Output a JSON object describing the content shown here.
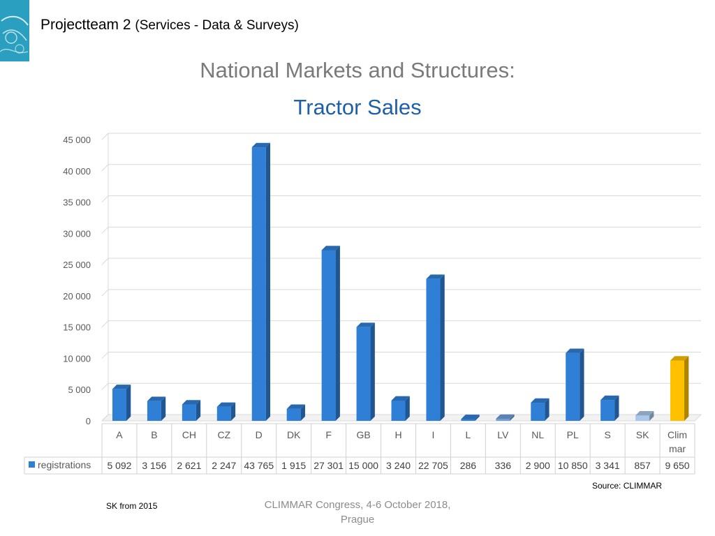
{
  "header": {
    "title": "Projectteam 2",
    "subtitle": "(Services - Data & Surveys)"
  },
  "slide": {
    "title": "National Markets and Structures:",
    "subtitle": "Tractor Sales"
  },
  "chart_data": {
    "type": "bar",
    "categories": [
      "A",
      "B",
      "CH",
      "CZ",
      "D",
      "DK",
      "F",
      "GB",
      "H",
      "I",
      "L",
      "LV",
      "NL",
      "PL",
      "S",
      "SK",
      "Clim\nmar"
    ],
    "series": [
      {
        "name": "registrations",
        "values": [
          5092,
          3156,
          2621,
          2247,
          43765,
          1915,
          27301,
          15000,
          3240,
          22705,
          286,
          336,
          2900,
          10850,
          3341,
          857,
          9650
        ],
        "value_labels": [
          "5 092",
          "3 156",
          "2 621",
          "2 247",
          "43 765",
          "1 915",
          "27 301",
          "15 000",
          "3 240",
          "22 705",
          "286",
          "336",
          "2 900",
          "10 850",
          "3 341",
          "857",
          "9 650"
        ]
      }
    ],
    "bar_colors": [
      "#2f7fd6",
      "#2f7fd6",
      "#2f7fd6",
      "#2f7fd6",
      "#2f7fd6",
      "#2f7fd6",
      "#2f7fd6",
      "#2f7fd6",
      "#2f7fd6",
      "#2f7fd6",
      "#2f7fd6",
      "#6f9fd8",
      "#2f7fd6",
      "#2f7fd6",
      "#2f7fd6",
      "#a9c8ea",
      "#ffc000"
    ],
    "legend_color": "#2f7fd6",
    "y_ticks": [
      "0",
      "5 000",
      "10 000",
      "15 000",
      "20 000",
      "25 000",
      "30 000",
      "35 000",
      "40 000",
      "45 000"
    ],
    "ylim": [
      0,
      45000
    ],
    "grid": true,
    "style": "3d-column-with-data-table"
  },
  "source": "Source: CLIMMAR",
  "footnote": "SK from 2015",
  "footer": {
    "line1": "CLIMMAR Congress, 4-6 October 2018,",
    "line2": "Prague"
  }
}
